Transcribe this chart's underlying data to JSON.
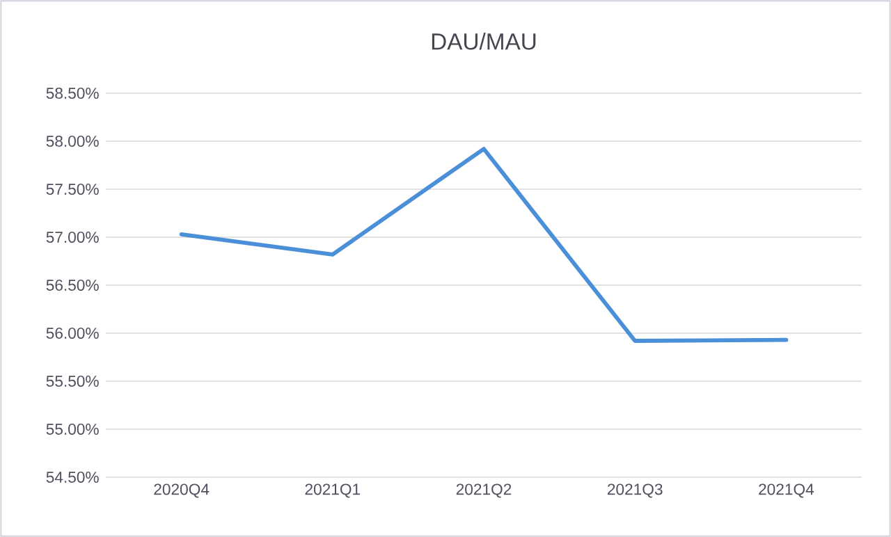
{
  "chart_data": {
    "type": "line",
    "title": "DAU/MAU",
    "categories": [
      "2020Q4",
      "2021Q1",
      "2021Q2",
      "2021Q3",
      "2021Q4"
    ],
    "series": [
      {
        "color": "#4a8fd8",
        "values": [
          57.03,
          56.82,
          57.92,
          55.92,
          55.93
        ]
      }
    ],
    "ylim": [
      54.5,
      58.5
    ],
    "yticks": [
      {
        "value": 54.5,
        "label": "54.50%"
      },
      {
        "value": 55.0,
        "label": "55.00%"
      },
      {
        "value": 55.5,
        "label": "55.50%"
      },
      {
        "value": 56.0,
        "label": "56.00%"
      },
      {
        "value": 56.5,
        "label": "56.50%"
      },
      {
        "value": 57.0,
        "label": "57.00%"
      },
      {
        "value": 57.5,
        "label": "57.50%"
      },
      {
        "value": 58.0,
        "label": "58.00%"
      },
      {
        "value": 58.5,
        "label": "58.50%"
      }
    ],
    "grid": "y",
    "marker": "none",
    "line_style": "solid"
  }
}
